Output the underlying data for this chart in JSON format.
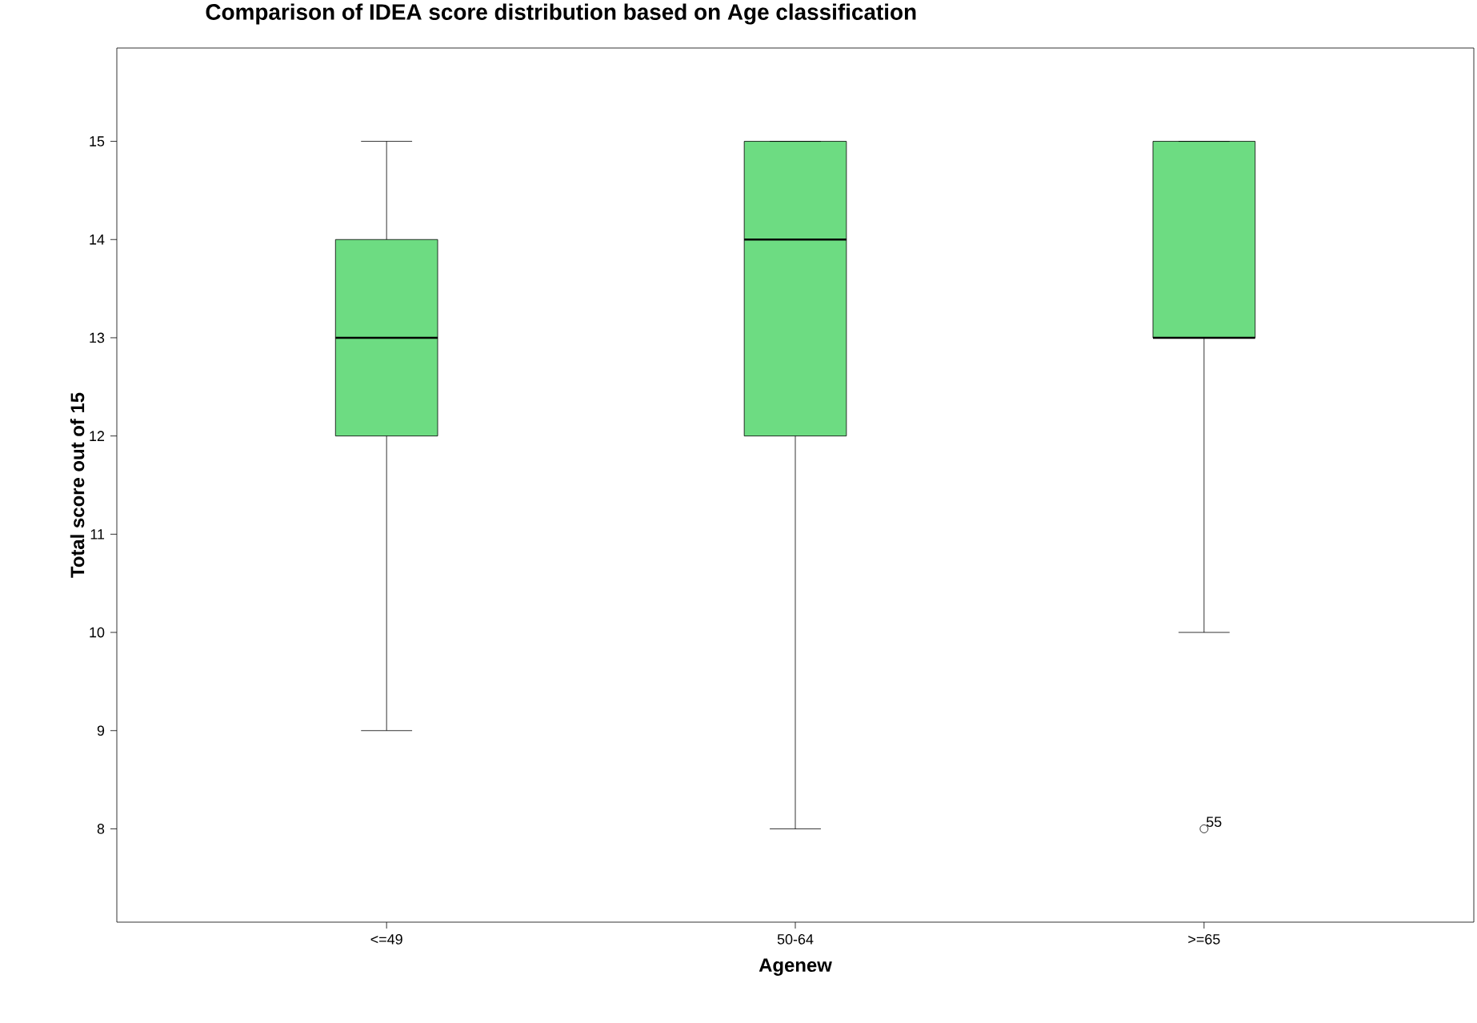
{
  "chart_data": {
    "type": "box",
    "title": "Comparison of IDEA score distribution based on Age classification",
    "xlabel": "Agenew",
    "ylabel": "Total score out of 15",
    "categories": [
      "<=49",
      "50-64",
      ">=65"
    ],
    "color": "#6ddc82",
    "boxes": [
      {
        "low": 9,
        "q1": 12,
        "median": 13,
        "q3": 14,
        "high": 15
      },
      {
        "low": 8,
        "q1": 12,
        "median": 14,
        "q3": 15,
        "high": 15
      },
      {
        "low": 10,
        "q1": 13,
        "median": 13,
        "q3": 15,
        "high": 15,
        "outliers": [
          8
        ]
      }
    ],
    "ylim": [
      7.05,
      15.95
    ],
    "yticks": [
      8,
      9,
      10,
      11,
      12,
      13,
      14,
      15
    ],
    "annotations": [
      "55"
    ],
    "grid": false
  }
}
